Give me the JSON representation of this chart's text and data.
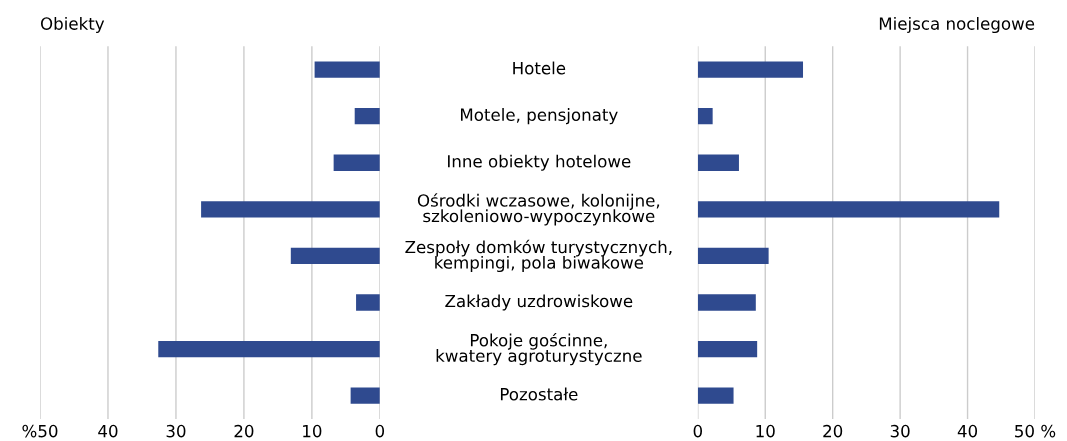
{
  "chart_data": [
    {
      "type": "bar",
      "orientation": "horizontal",
      "title": "Obiekty",
      "categories": [
        "Hotele",
        "Motele, pensjonaty",
        "Inne obiekty hotelowe",
        "Ośrodki wczasowe, kolonijne,\nszkoleniowo-wypoczynkowe",
        "Zespoły domków turystycznych,\nkempingi, pola biwakowe",
        "Zakłady uzdrowiskowe",
        "Pokoje gościnne,\nkwatery agroturystyczne",
        "Pozostałe"
      ],
      "values": [
        9.6,
        3.7,
        6.8,
        26.3,
        13.1,
        3.5,
        32.6,
        4.3
      ],
      "color": "#2f4a8f",
      "xlim": [
        50,
        0
      ],
      "xticks": [
        {
          "value": 50,
          "label": "%50"
        },
        40,
        30,
        20,
        10,
        0
      ],
      "grid": "x"
    },
    {
      "type": "bar",
      "orientation": "horizontal",
      "title": "Miejsca noclegowe",
      "categories": [
        null,
        null,
        null,
        null,
        null,
        null,
        null,
        null
      ],
      "values": [
        15.6,
        2.2,
        6.1,
        44.7,
        10.5,
        8.6,
        8.8,
        5.3
      ],
      "color": "#2f4a8f",
      "xlim": [
        0,
        50
      ],
      "xticks": [
        0,
        10,
        20,
        30,
        40,
        {
          "value": 50,
          "label": "50 %"
        }
      ],
      "grid": "x"
    }
  ]
}
